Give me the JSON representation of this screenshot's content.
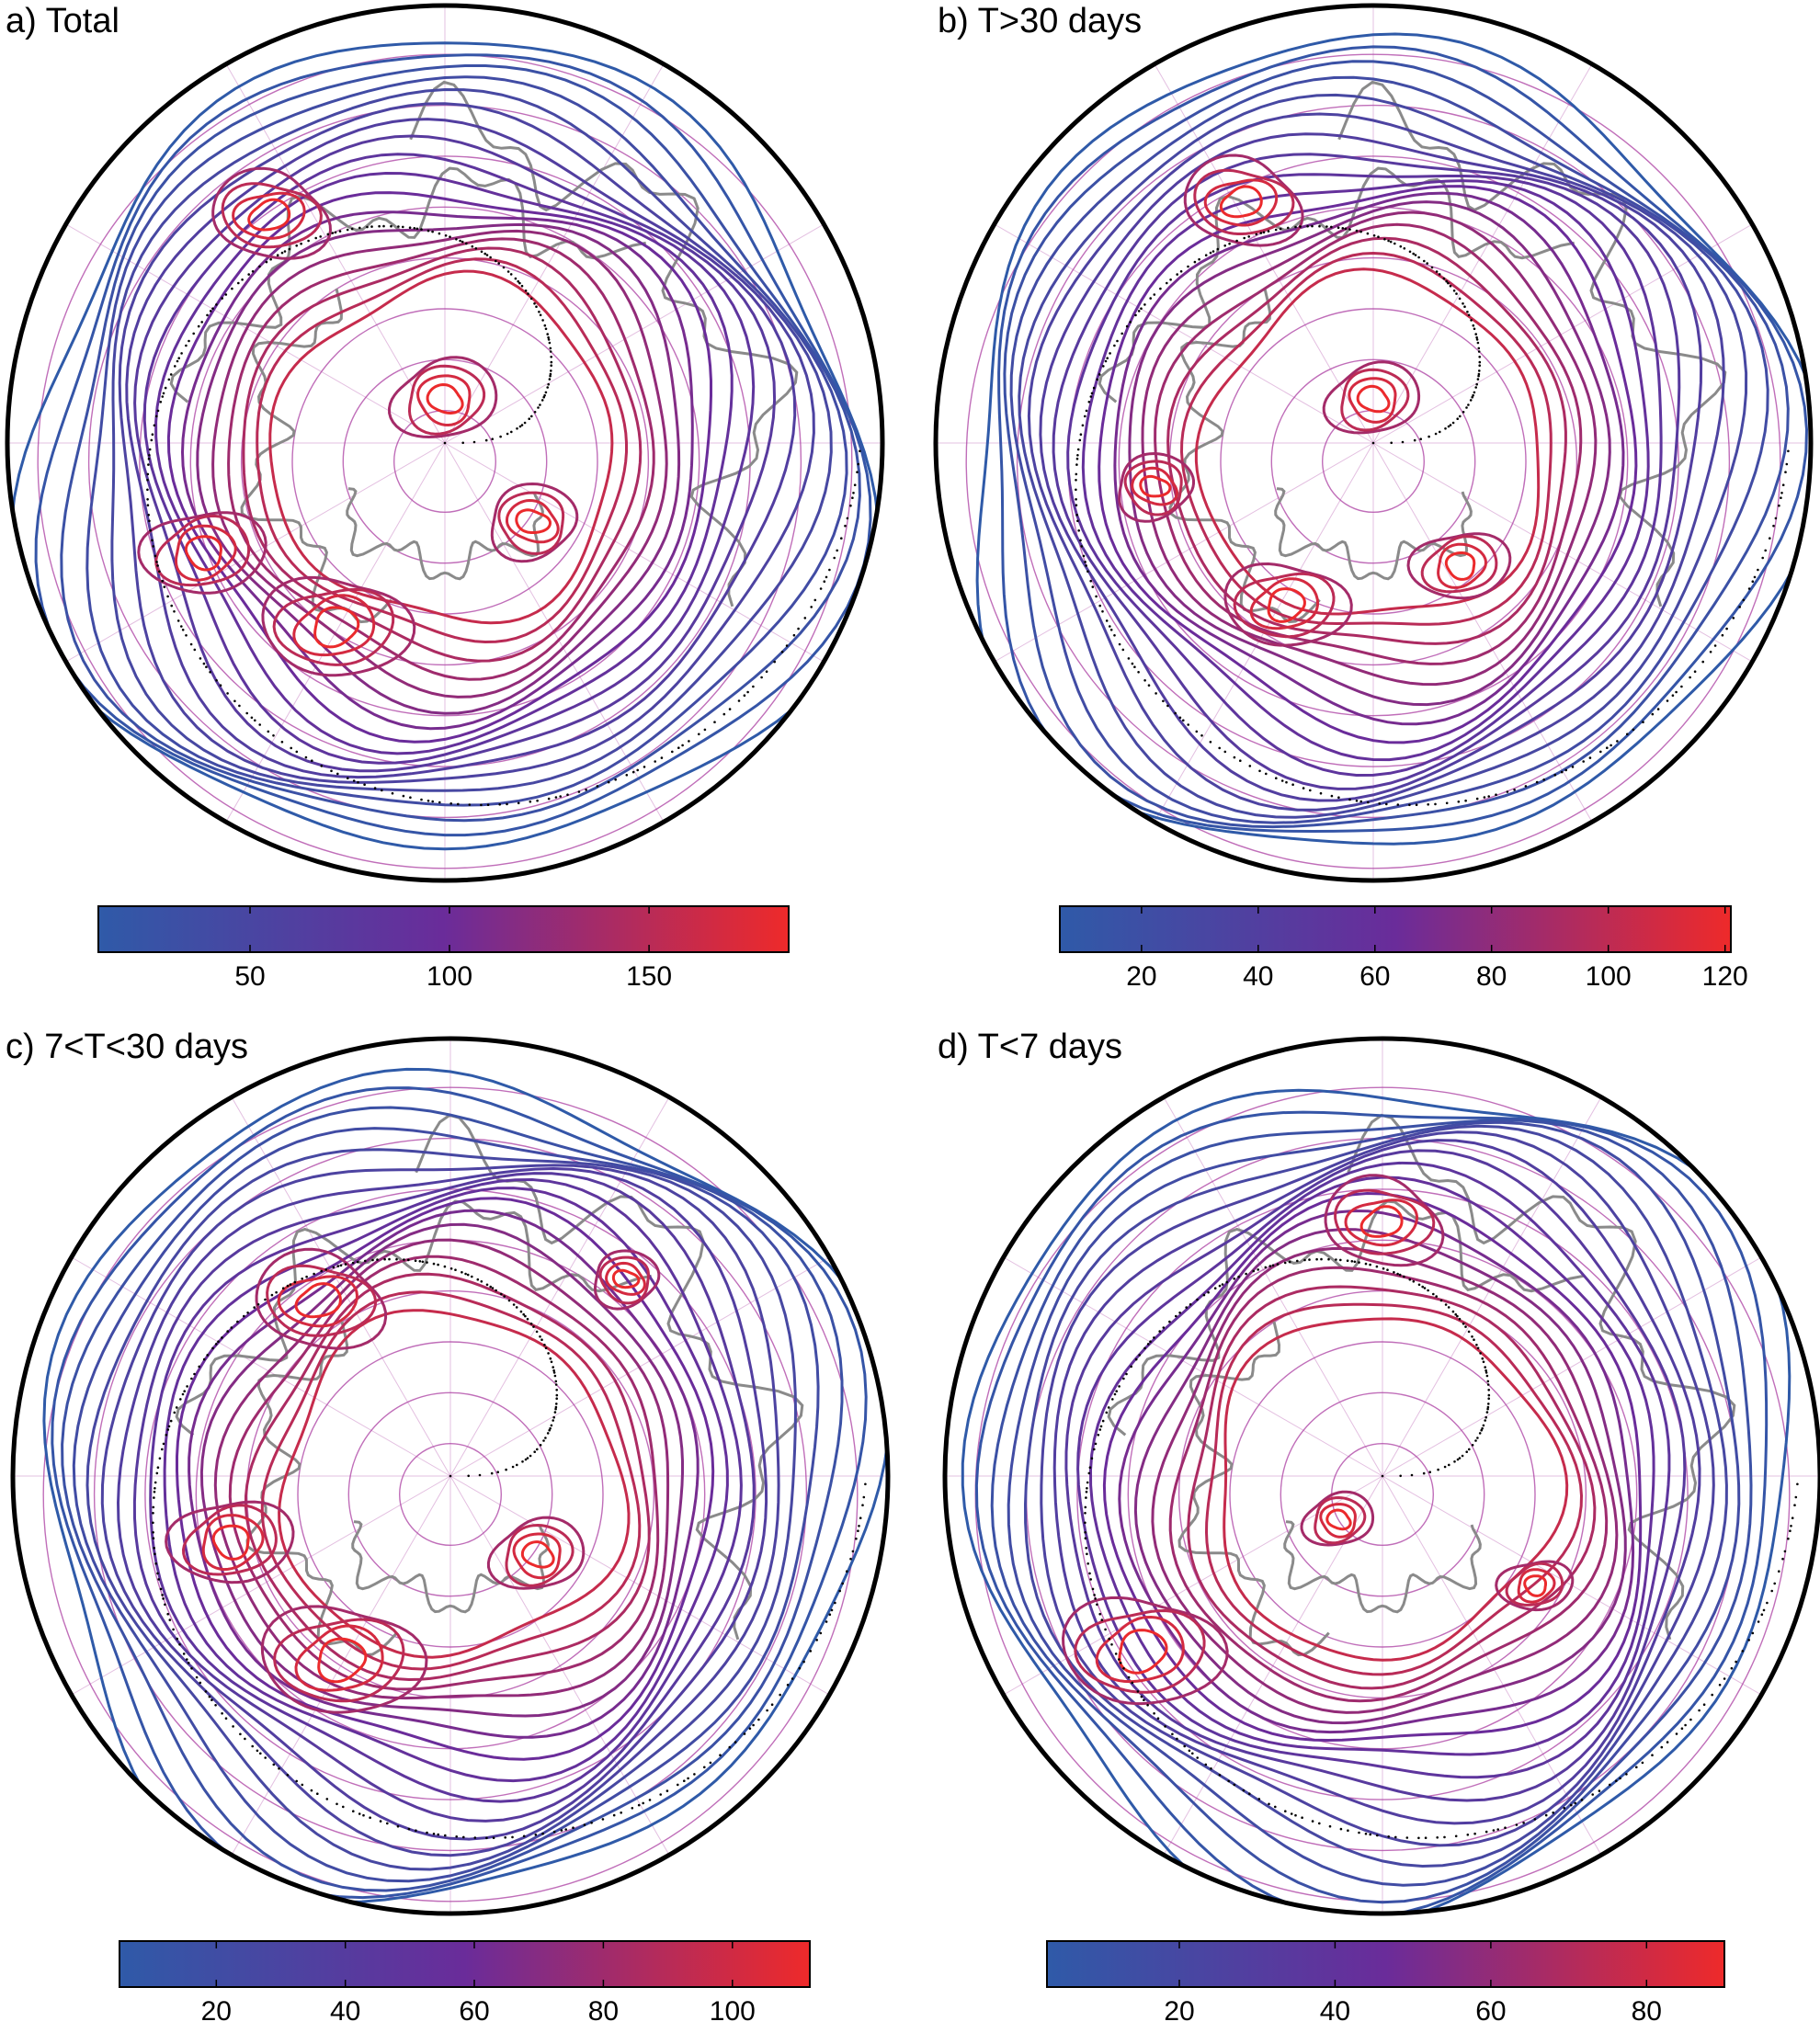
{
  "colors": {
    "low": "#2f5aa8",
    "mid": "#6a2c9a",
    "high": "#ee2a2a",
    "coast": "#8a8a8a",
    "frame": "#000000"
  },
  "panels": [
    {
      "id": "a",
      "title": "a) Total",
      "colorbar": {
        "min": 12,
        "max": 185,
        "ticks": [
          50,
          100,
          150
        ]
      },
      "maxima": [
        {
          "u": -0.4,
          "v": -0.52,
          "r": 0.1
        },
        {
          "u": -0.25,
          "v": 0.42,
          "r": 0.12
        },
        {
          "u": -0.55,
          "v": 0.25,
          "r": 0.1
        },
        {
          "u": 0.0,
          "v": -0.1,
          "r": 0.09
        },
        {
          "u": 0.2,
          "v": 0.18,
          "r": 0.08
        }
      ]
    },
    {
      "id": "b",
      "title": "b) T>30 days",
      "colorbar": {
        "min": 6,
        "max": 121,
        "ticks": [
          20,
          40,
          60,
          80,
          100,
          120
        ]
      },
      "maxima": [
        {
          "u": -0.3,
          "v": -0.55,
          "r": 0.1
        },
        {
          "u": -0.2,
          "v": 0.37,
          "r": 0.1
        },
        {
          "u": 0.2,
          "v": 0.28,
          "r": 0.08
        },
        {
          "u": 0.0,
          "v": -0.1,
          "r": 0.08
        },
        {
          "u": -0.5,
          "v": 0.1,
          "r": 0.07
        }
      ]
    },
    {
      "id": "c",
      "title": "c) 7<T<30 days",
      "colorbar": {
        "min": 5,
        "max": 112,
        "ticks": [
          20,
          40,
          60,
          80,
          100
        ]
      },
      "maxima": [
        {
          "u": -0.3,
          "v": -0.4,
          "r": 0.11
        },
        {
          "u": -0.25,
          "v": 0.42,
          "r": 0.13
        },
        {
          "u": -0.5,
          "v": 0.15,
          "r": 0.1
        },
        {
          "u": 0.2,
          "v": 0.18,
          "r": 0.08
        },
        {
          "u": 0.4,
          "v": -0.45,
          "r": 0.06
        }
      ]
    },
    {
      "id": "d",
      "title": "d) T<7 days",
      "colorbar": {
        "min": 3,
        "max": 90,
        "ticks": [
          20,
          40,
          60,
          80
        ]
      },
      "maxima": [
        {
          "u": 0.0,
          "v": -0.58,
          "r": 0.1
        },
        {
          "u": -0.55,
          "v": 0.4,
          "r": 0.13
        },
        {
          "u": 0.35,
          "v": 0.25,
          "r": 0.06
        },
        {
          "u": -0.1,
          "v": 0.1,
          "r": 0.06
        }
      ]
    }
  ]
}
